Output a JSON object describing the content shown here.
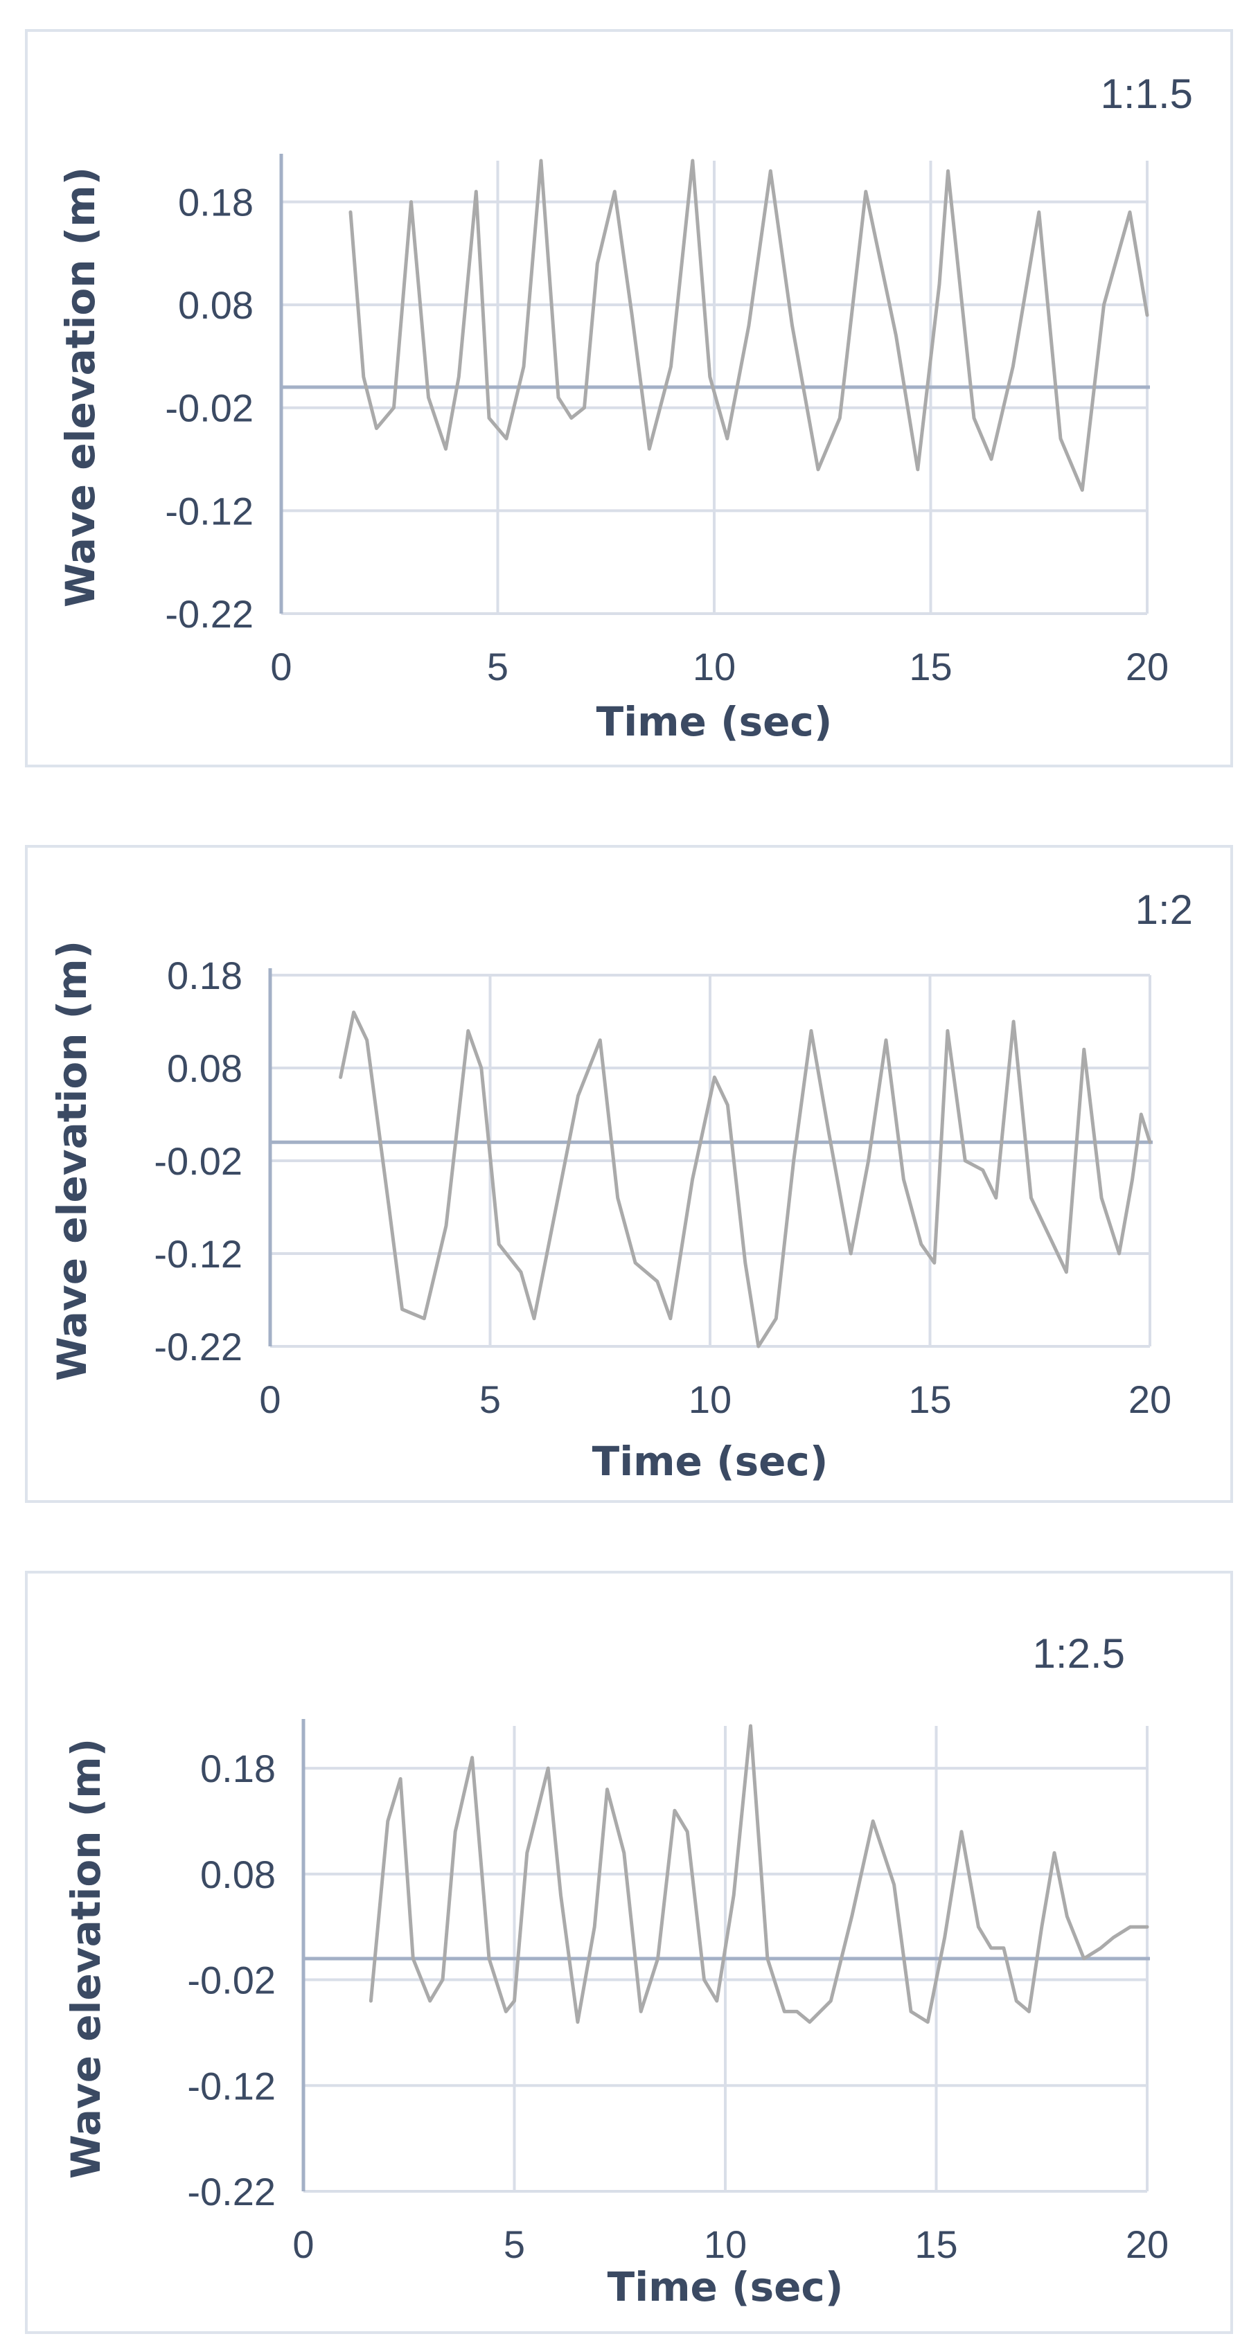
{
  "colors": {
    "series": "#aaaaaa",
    "grid": "#d9dee8",
    "axis": "#a3b0c6",
    "zero_line": "#a3b0c6",
    "text": "#3b4a63",
    "border": "#dde3ec"
  },
  "chart_data": [
    {
      "type": "line",
      "title": "1:1.5",
      "xlabel": "Time (sec)",
      "ylabel": "Wave elevation (m)",
      "xlim": [
        0,
        20
      ],
      "ylim": [
        -0.22,
        0.22
      ],
      "xticks": [
        "0",
        "5",
        "10",
        "15",
        "20"
      ],
      "yticks": [
        "0.18",
        "0.08",
        "-0.02",
        "-0.12",
        "-0.22"
      ],
      "grid": true,
      "reference_line": 0,
      "series": [
        {
          "x": [
            1.6,
            1.9,
            2.2,
            2.6,
            3.0,
            3.4,
            3.8,
            4.1,
            4.5,
            4.8,
            5.2,
            5.6,
            6.0,
            6.4,
            6.7,
            7.0,
            7.3,
            7.7,
            8.1,
            8.5,
            9.0,
            9.5,
            9.9,
            10.3,
            10.8,
            11.3,
            11.8,
            12.4,
            12.9,
            13.5,
            14.2,
            14.7,
            15.2,
            15.4,
            16.0,
            16.4,
            16.9,
            17.5,
            18.0,
            18.5,
            19.0,
            19.6,
            20.0
          ],
          "y": [
            0.17,
            0.01,
            -0.04,
            -0.02,
            0.18,
            -0.01,
            -0.06,
            0.01,
            0.19,
            -0.03,
            -0.05,
            0.02,
            0.22,
            -0.01,
            -0.03,
            -0.02,
            0.12,
            0.19,
            0.07,
            -0.06,
            0.02,
            0.22,
            0.01,
            -0.05,
            0.06,
            0.21,
            0.06,
            -0.08,
            -0.03,
            0.19,
            0.05,
            -0.08,
            0.1,
            0.21,
            -0.03,
            -0.07,
            0.02,
            0.17,
            -0.05,
            -0.1,
            0.08,
            0.17,
            0.07
          ]
        }
      ]
    },
    {
      "type": "line",
      "title": "1:2",
      "xlabel": "Time (sec)",
      "ylabel": "Wave elevation (m)",
      "xlim": [
        0,
        20
      ],
      "ylim": [
        -0.22,
        0.18
      ],
      "xticks": [
        "0",
        "5",
        "10",
        "15",
        "20"
      ],
      "yticks": [
        "0.18",
        "0.08",
        "-0.02",
        "-0.12",
        "-0.22"
      ],
      "grid": true,
      "reference_line": 0,
      "series": [
        {
          "x": [
            1.6,
            1.9,
            2.2,
            2.7,
            3.0,
            3.5,
            4.0,
            4.5,
            4.8,
            5.2,
            5.7,
            6.0,
            6.5,
            7.0,
            7.5,
            7.9,
            8.3,
            8.8,
            9.1,
            9.6,
            10.1,
            10.4,
            10.8,
            11.1,
            11.5,
            11.9,
            12.3,
            12.7,
            13.2,
            13.6,
            14.0,
            14.4,
            14.8,
            15.1,
            15.4,
            15.8,
            16.2,
            16.5,
            16.9,
            17.3,
            17.8,
            18.1,
            18.5,
            18.9,
            19.3,
            19.6,
            19.8,
            20.0
          ],
          "y": [
            0.07,
            0.14,
            0.11,
            -0.07,
            -0.18,
            -0.19,
            -0.09,
            0.12,
            0.08,
            -0.11,
            -0.14,
            -0.19,
            -0.07,
            0.05,
            0.11,
            -0.06,
            -0.13,
            -0.15,
            -0.19,
            -0.04,
            0.07,
            0.04,
            -0.13,
            -0.22,
            -0.19,
            -0.02,
            0.12,
            0.01,
            -0.12,
            -0.02,
            0.11,
            -0.04,
            -0.11,
            -0.13,
            0.12,
            -0.02,
            -0.03,
            -0.06,
            0.13,
            -0.06,
            -0.11,
            -0.14,
            0.1,
            -0.06,
            -0.12,
            -0.04,
            0.03,
            0.0
          ]
        }
      ]
    },
    {
      "type": "line",
      "title": "1:2.5",
      "xlabel": "Time (sec)",
      "ylabel": "Wave elevation (m)",
      "xlim": [
        0,
        20
      ],
      "ylim": [
        -0.22,
        0.22
      ],
      "xticks": [
        "0",
        "5",
        "10",
        "15",
        "20"
      ],
      "yticks": [
        "0.18",
        "0.08",
        "-0.02",
        "-0.12",
        "-0.22"
      ],
      "grid": true,
      "reference_line": 0,
      "series": [
        {
          "x": [
            1.6,
            2.0,
            2.3,
            2.6,
            3.0,
            3.3,
            3.6,
            4.0,
            4.4,
            4.8,
            5.0,
            5.3,
            5.8,
            6.1,
            6.5,
            6.9,
            7.2,
            7.6,
            8.0,
            8.4,
            8.8,
            9.1,
            9.5,
            9.8,
            10.2,
            10.6,
            11.0,
            11.4,
            11.7,
            12.0,
            12.5,
            13.0,
            13.5,
            14.0,
            14.4,
            14.8,
            15.2,
            15.6,
            16.0,
            16.3,
            16.6,
            16.9,
            17.2,
            17.5,
            17.8,
            18.1,
            18.5,
            18.9,
            19.2,
            19.6,
            20.0
          ],
          "y": [
            -0.04,
            0.13,
            0.17,
            0.0,
            -0.04,
            -0.02,
            0.12,
            0.19,
            0.0,
            -0.05,
            -0.04,
            0.1,
            0.18,
            0.06,
            -0.06,
            0.03,
            0.16,
            0.1,
            -0.05,
            0.0,
            0.14,
            0.12,
            -0.02,
            -0.04,
            0.06,
            0.22,
            0.0,
            -0.05,
            -0.05,
            -0.06,
            -0.04,
            0.04,
            0.13,
            0.07,
            -0.05,
            -0.06,
            0.02,
            0.12,
            0.03,
            0.01,
            0.01,
            -0.04,
            -0.05,
            0.03,
            0.1,
            0.04,
            0.0,
            0.01,
            0.02,
            0.03,
            0.03
          ]
        }
      ]
    }
  ]
}
